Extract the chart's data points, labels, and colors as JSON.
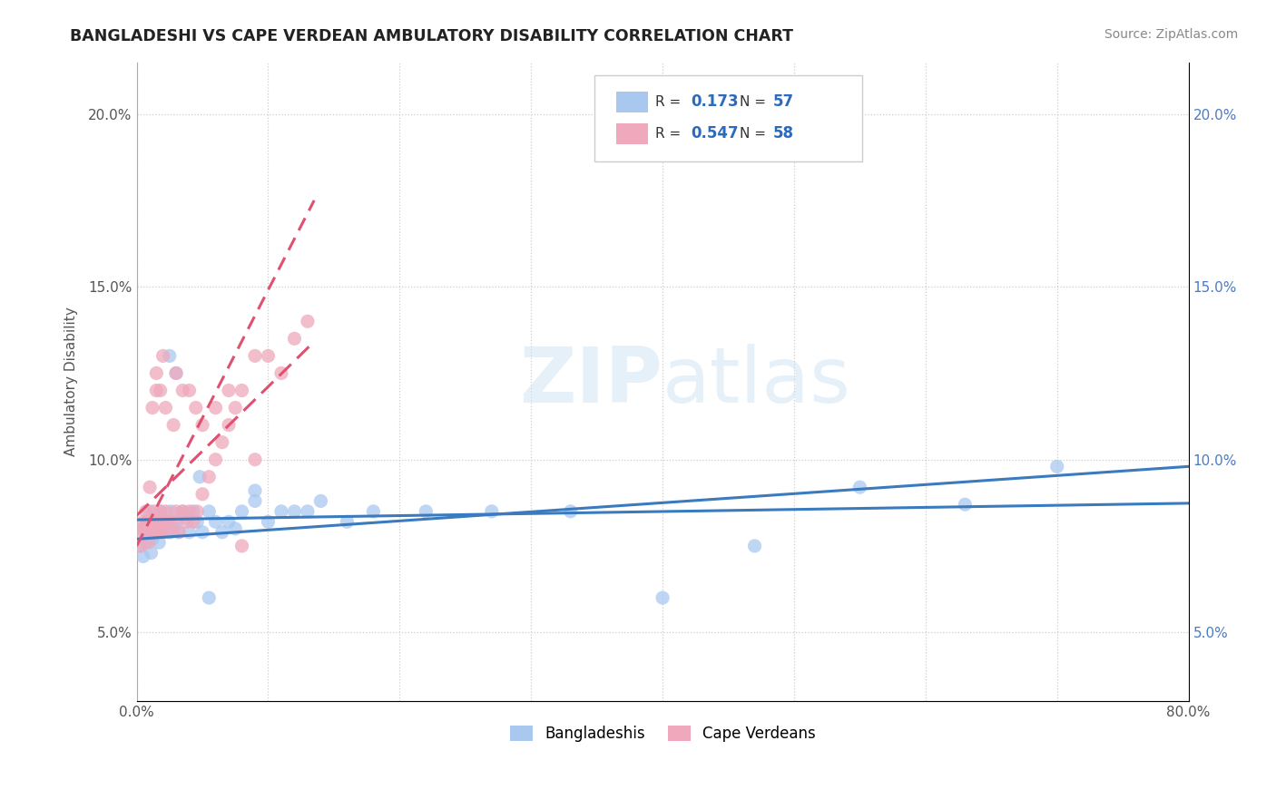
{
  "title": "BANGLADESHI VS CAPE VERDEAN AMBULATORY DISABILITY CORRELATION CHART",
  "source_text": "Source: ZipAtlas.com",
  "ylabel": "Ambulatory Disability",
  "xlim": [
    0.0,
    0.8
  ],
  "ylim": [
    0.03,
    0.215
  ],
  "R_bangladeshi": 0.173,
  "N_bangladeshi": 57,
  "R_cape_verdean": 0.547,
  "N_cape_verdean": 58,
  "legend_label_1": "Bangladeshis",
  "legend_label_2": "Cape Verdeans",
  "watermark_text": "ZIPatlas",
  "background_color": "#ffffff",
  "grid_color": "#c8c8c8",
  "bangladeshi_color": "#a8c8f0",
  "cape_verdean_color": "#f0a8bc",
  "trend_bangladeshi_color": "#3a7abf",
  "trend_cape_verdean_color": "#e05070",
  "bangladeshi_x": [
    0.003,
    0.004,
    0.005,
    0.006,
    0.007,
    0.008,
    0.009,
    0.01,
    0.011,
    0.012,
    0.013,
    0.014,
    0.015,
    0.016,
    0.017,
    0.018,
    0.019,
    0.02,
    0.022,
    0.024,
    0.026,
    0.028,
    0.03,
    0.032,
    0.035,
    0.038,
    0.04,
    0.043,
    0.046,
    0.05,
    0.055,
    0.06,
    0.065,
    0.07,
    0.075,
    0.08,
    0.09,
    0.1,
    0.11,
    0.12,
    0.14,
    0.16,
    0.18,
    0.22,
    0.27,
    0.33,
    0.4,
    0.47,
    0.55,
    0.63,
    0.7,
    0.025,
    0.03,
    0.048,
    0.055,
    0.09,
    0.13
  ],
  "bangladeshi_y": [
    0.075,
    0.078,
    0.072,
    0.08,
    0.076,
    0.082,
    0.079,
    0.085,
    0.073,
    0.077,
    0.083,
    0.08,
    0.079,
    0.082,
    0.076,
    0.085,
    0.079,
    0.08,
    0.082,
    0.079,
    0.085,
    0.08,
    0.082,
    0.079,
    0.085,
    0.083,
    0.079,
    0.085,
    0.082,
    0.079,
    0.085,
    0.082,
    0.079,
    0.082,
    0.08,
    0.085,
    0.088,
    0.082,
    0.085,
    0.085,
    0.088,
    0.082,
    0.085,
    0.085,
    0.085,
    0.085,
    0.06,
    0.075,
    0.092,
    0.087,
    0.098,
    0.13,
    0.125,
    0.095,
    0.06,
    0.091,
    0.085
  ],
  "cape_verdean_x": [
    0.003,
    0.004,
    0.005,
    0.006,
    0.007,
    0.008,
    0.009,
    0.01,
    0.011,
    0.012,
    0.013,
    0.014,
    0.015,
    0.016,
    0.017,
    0.018,
    0.019,
    0.02,
    0.022,
    0.024,
    0.026,
    0.028,
    0.03,
    0.032,
    0.035,
    0.038,
    0.04,
    0.043,
    0.046,
    0.05,
    0.055,
    0.06,
    0.065,
    0.07,
    0.075,
    0.08,
    0.09,
    0.1,
    0.11,
    0.12,
    0.13,
    0.015,
    0.02,
    0.03,
    0.04,
    0.05,
    0.06,
    0.07,
    0.08,
    0.09,
    0.01,
    0.012,
    0.015,
    0.018,
    0.022,
    0.028,
    0.035,
    0.045
  ],
  "cape_verdean_y": [
    0.075,
    0.08,
    0.082,
    0.079,
    0.085,
    0.082,
    0.076,
    0.08,
    0.082,
    0.079,
    0.085,
    0.082,
    0.079,
    0.082,
    0.08,
    0.085,
    0.082,
    0.079,
    0.085,
    0.082,
    0.079,
    0.082,
    0.085,
    0.079,
    0.085,
    0.082,
    0.085,
    0.082,
    0.085,
    0.09,
    0.095,
    0.1,
    0.105,
    0.11,
    0.115,
    0.12,
    0.13,
    0.13,
    0.125,
    0.135,
    0.14,
    0.12,
    0.13,
    0.125,
    0.12,
    0.11,
    0.115,
    0.12,
    0.075,
    0.1,
    0.092,
    0.115,
    0.125,
    0.12,
    0.115,
    0.11,
    0.12,
    0.115
  ]
}
